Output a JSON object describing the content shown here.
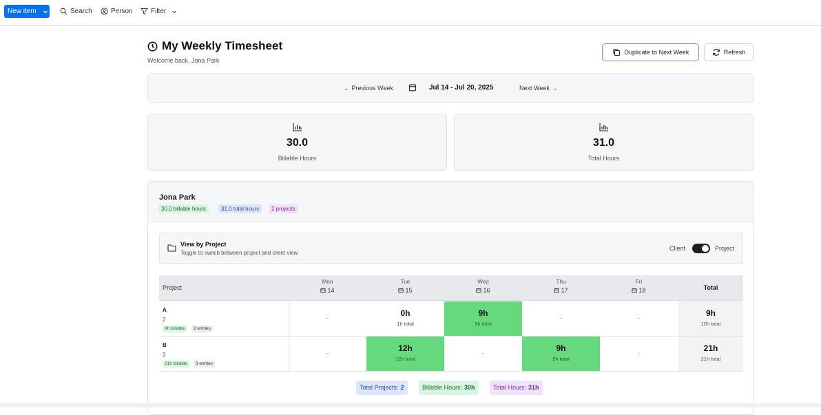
{
  "toolbar": {
    "new_item": "New item",
    "search": "Search",
    "person": "Person",
    "filter": "Filter"
  },
  "header": {
    "title": "My Weekly Timesheet",
    "subtitle": "Welcome back, Jona Park",
    "duplicate_btn": "Duplicate to Next Week",
    "refresh_btn": "Refresh"
  },
  "week_nav": {
    "prev": "← Previous Week",
    "range": "Jul 14 - Jul 20, 2025",
    "next": "Next Week →"
  },
  "stats": [
    {
      "value": "30.0",
      "label": "Billable Hours",
      "icon": "bar-chart-icon"
    },
    {
      "value": "31.0",
      "label": "Total Hours",
      "icon": "bar-chart-icon"
    }
  ],
  "person": {
    "name": "Jona Park",
    "badges": {
      "billable": "30.0 billable hours",
      "total": "31.0 total hours",
      "projects": "2 projects"
    }
  },
  "view_toggle": {
    "title": "View by Project",
    "hint": "Toggle to switch between project and client view",
    "left_label": "Client",
    "right_label": "Project",
    "state": "Project"
  },
  "table": {
    "col_project": "Project",
    "col_total": "Total",
    "days": [
      {
        "name": "Mon",
        "date": "14"
      },
      {
        "name": "Tue",
        "date": "15"
      },
      {
        "name": "Wed",
        "date": "16"
      },
      {
        "name": "Thu",
        "date": "17"
      },
      {
        "name": "Fri",
        "date": "18"
      }
    ],
    "rows": [
      {
        "name": "A",
        "num": "2",
        "billable": "9h billable",
        "entries": "2 entries",
        "cells": [
          {
            "hours": "-",
            "sub": "",
            "highlight": false
          },
          {
            "hours": "0h",
            "sub": "1h total",
            "highlight": false
          },
          {
            "hours": "9h",
            "sub": "9h total",
            "highlight": true
          },
          {
            "hours": "-",
            "sub": "",
            "highlight": false
          },
          {
            "hours": "-",
            "sub": "",
            "highlight": false
          }
        ],
        "total": "9h",
        "total_sub": "10h total"
      },
      {
        "name": "B",
        "num": "3",
        "billable": "21h billable",
        "entries": "3 entries",
        "cells": [
          {
            "hours": "-",
            "sub": "",
            "highlight": false
          },
          {
            "hours": "12h",
            "sub": "12h total",
            "highlight": true
          },
          {
            "hours": "-",
            "sub": "",
            "highlight": false
          },
          {
            "hours": "9h",
            "sub": "9h total",
            "highlight": true
          },
          {
            "hours": "-",
            "sub": "",
            "highlight": false
          }
        ],
        "total": "21h",
        "total_sub": "21h total"
      }
    ]
  },
  "summary": {
    "projects_label": "Total Projects:",
    "projects_value": "2",
    "billable_label": "Billable Hours:",
    "billable_value": "30h",
    "total_label": "Total Hours:",
    "total_value": "31h"
  },
  "colors": {
    "accent": "#0073ea",
    "highlight_cell": "#66d97f",
    "duplicate_border": "#8f84d8"
  }
}
